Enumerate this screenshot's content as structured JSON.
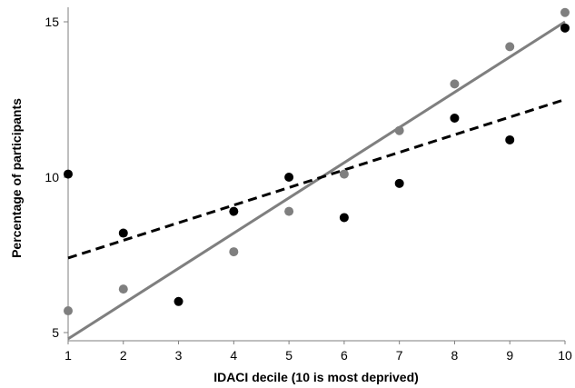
{
  "chart_data": {
    "type": "scatter",
    "title": "",
    "xlabel": "IDACI decile (10 is most deprived)",
    "ylabel": "Percentage of participants",
    "xlim": [
      1,
      10
    ],
    "ylim": [
      5,
      15
    ],
    "xticks": [
      "1",
      "2",
      "3",
      "4",
      "5",
      "6",
      "7",
      "8",
      "9",
      "10"
    ],
    "yticks": [
      "5",
      "10",
      "15"
    ],
    "grid": false,
    "legend": "none",
    "series": [
      {
        "color": "#7f7f7f",
        "marker": "circle",
        "trendline": "solid",
        "x": [
          1,
          2,
          4,
          5,
          6,
          7,
          8,
          9,
          10
        ],
        "y": [
          5.7,
          6.4,
          7.6,
          8.9,
          10.1,
          11.5,
          13.0,
          14.2,
          15.3
        ],
        "trend_y": [
          4.8,
          15.0
        ]
      },
      {
        "color": "#000000",
        "marker": "circle",
        "trendline": "dashed",
        "x": [
          1,
          2,
          3,
          4,
          5,
          6,
          7,
          8,
          9,
          10
        ],
        "y": [
          10.1,
          8.2,
          6.0,
          8.9,
          10.0,
          8.7,
          9.8,
          11.9,
          11.2,
          14.8
        ],
        "trend_y": [
          7.4,
          12.5
        ]
      }
    ]
  }
}
